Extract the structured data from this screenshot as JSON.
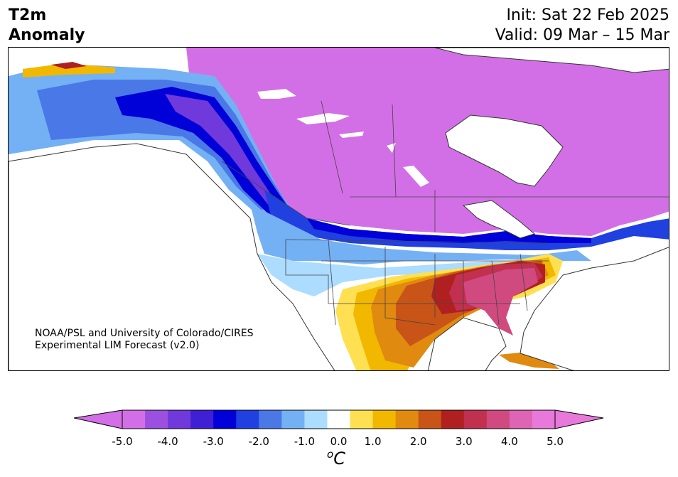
{
  "title": {
    "variable": "T2m",
    "subtitle": "Anomaly",
    "init": "Init: Sat 22 Feb 2025",
    "valid": "Valid: 09 Mar – 15 Mar"
  },
  "credit": {
    "line1": "NOAA/PSL and University of Colorado/CIRES",
    "line2": "Experimental LIM Forecast (v2.0)"
  },
  "colorbar": {
    "unit_base": "C",
    "unit_sup": "o",
    "ticks": [
      "-5.0",
      "-4.0",
      "-3.0",
      "-2.0",
      "-1.0",
      "0.0",
      "1.0",
      "2.0",
      "3.0",
      "4.0",
      "5.0"
    ],
    "levels": [
      -5.0,
      -4.5,
      -4.0,
      -3.5,
      -3.0,
      -2.5,
      -2.0,
      -1.5,
      -1.0,
      -0.5,
      0.5,
      1.0,
      1.5,
      2.0,
      2.5,
      3.0,
      3.5,
      4.0,
      4.5,
      5.0
    ],
    "colors": [
      "#d36fe6",
      "#9b50e0",
      "#6f39dc",
      "#4020d4",
      "#0000d8",
      "#2040e0",
      "#4a78e6",
      "#74b0f4",
      "#acdcff",
      "#ffffff",
      "#ffe052",
      "#f2b800",
      "#e08a10",
      "#c85418",
      "#b02020",
      "#c23050",
      "#d04a80",
      "#de64b4",
      "#e878da"
    ],
    "extend_low_color": "#d36fe6",
    "extend_high_color": "#e878da"
  },
  "map": {
    "region": "North America",
    "pattern": "cold anomaly over Alaska, Canada and the northern US; warm anomaly over the southern and southeastern US"
  }
}
